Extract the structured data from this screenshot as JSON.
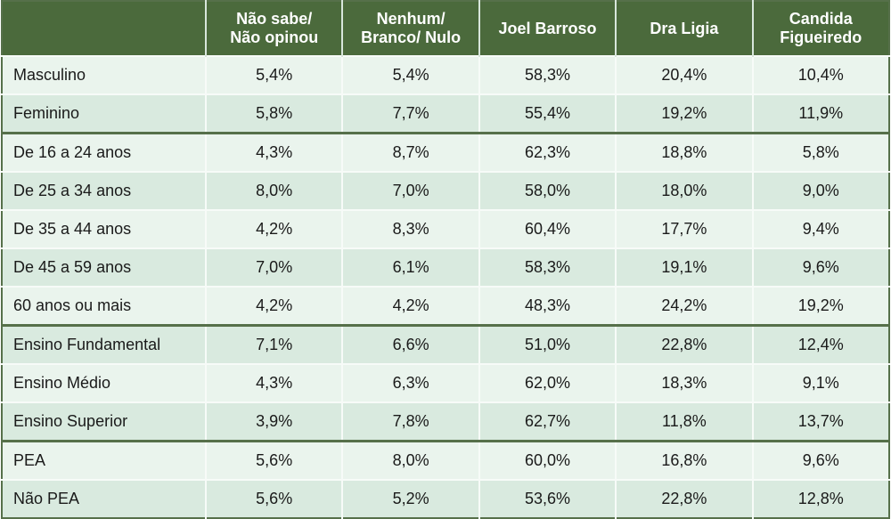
{
  "headers": [
    "",
    "Não sabe/\nNão opinou",
    "Nenhum/\nBranco/ Nulo",
    "Joel Barroso",
    "Dra Ligia",
    "Candida\nFigueiredo"
  ],
  "rows": [
    {
      "label": "Masculino",
      "values": [
        "5,4%",
        "5,4%",
        "58,3%",
        "20,4%",
        "10,4%"
      ],
      "group_start": false
    },
    {
      "label": "Feminino",
      "values": [
        "5,8%",
        "7,7%",
        "55,4%",
        "19,2%",
        "11,9%"
      ],
      "group_start": false
    },
    {
      "label": "De 16 a 24 anos",
      "values": [
        "4,3%",
        "8,7%",
        "62,3%",
        "18,8%",
        "5,8%"
      ],
      "group_start": true
    },
    {
      "label": "De 25 a 34 anos",
      "values": [
        "8,0%",
        "7,0%",
        "58,0%",
        "18,0%",
        "9,0%"
      ],
      "group_start": false
    },
    {
      "label": "De 35 a 44 anos",
      "values": [
        "4,2%",
        "8,3%",
        "60,4%",
        "17,7%",
        "9,4%"
      ],
      "group_start": false
    },
    {
      "label": "De 45 a 59 anos",
      "values": [
        "7,0%",
        "6,1%",
        "58,3%",
        "19,1%",
        "9,6%"
      ],
      "group_start": false
    },
    {
      "label": "60 anos ou mais",
      "values": [
        "4,2%",
        "4,2%",
        "48,3%",
        "24,2%",
        "19,2%"
      ],
      "group_start": false
    },
    {
      "label": "Ensino Fundamental",
      "values": [
        "7,1%",
        "6,6%",
        "51,0%",
        "22,8%",
        "12,4%"
      ],
      "group_start": true
    },
    {
      "label": "Ensino Médio",
      "values": [
        "4,3%",
        "6,3%",
        "62,0%",
        "18,3%",
        "9,1%"
      ],
      "group_start": false
    },
    {
      "label": "Ensino Superior",
      "values": [
        "3,9%",
        "7,8%",
        "62,7%",
        "11,8%",
        "13,7%"
      ],
      "group_start": false
    },
    {
      "label": "PEA",
      "values": [
        "5,6%",
        "8,0%",
        "60,0%",
        "16,8%",
        "9,6%"
      ],
      "group_start": true
    },
    {
      "label": "Não PEA",
      "values": [
        "5,6%",
        "5,2%",
        "53,6%",
        "22,8%",
        "12,8%"
      ],
      "group_start": false
    }
  ],
  "colors": {
    "header": "#4b6a3c",
    "row_light": "#eaf4ed",
    "row_dark": "#d9eadf"
  }
}
